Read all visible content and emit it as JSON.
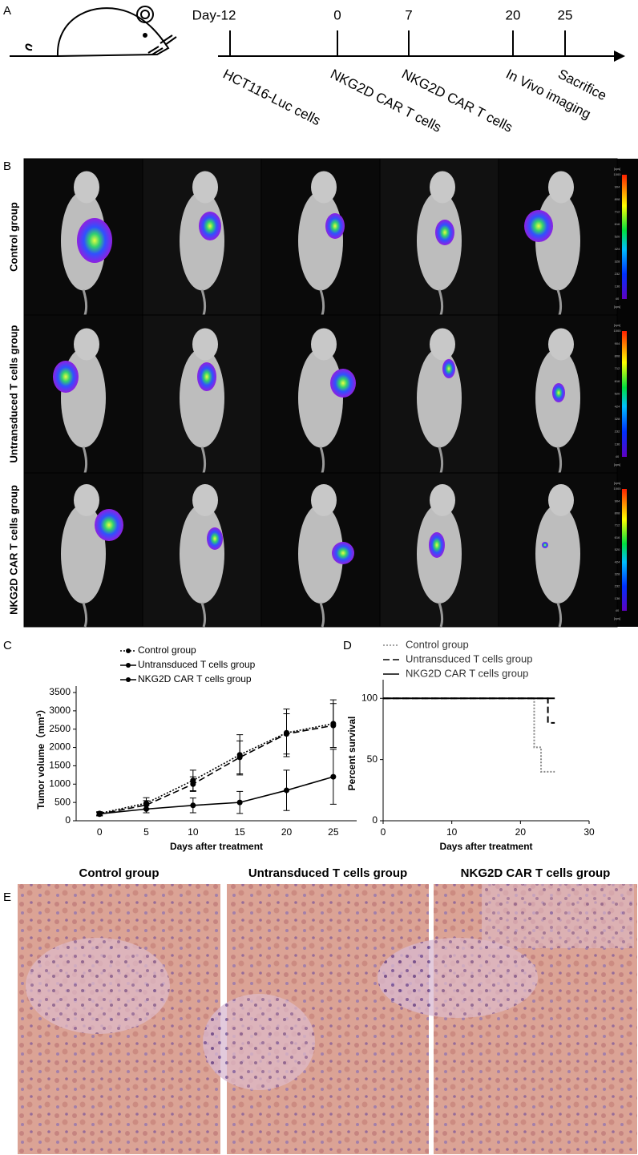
{
  "panel_labels": [
    "A",
    "B",
    "C",
    "D",
    "E"
  ],
  "timeline": {
    "ticks": [
      "Day-12",
      "0",
      "7",
      "20",
      "25"
    ],
    "events": [
      "HCT116-Luc cells",
      "NKG2D CAR T cells",
      "NKG2D CAR T cells",
      "In Vivo imaging",
      "Sacrifice"
    ]
  },
  "imaging": {
    "row_labels": [
      "Control group",
      "Untransduced T cells group",
      "NKG2D CAR T cells group"
    ],
    "colorbar_unit": "[cps]",
    "colorbar_ticks": [
      "1000",
      "904",
      "808",
      "712",
      "616",
      "520",
      "424",
      "328",
      "232",
      "136",
      "40"
    ]
  },
  "chart_data": [
    {
      "type": "line",
      "xlabel": "Days after treatment",
      "ylabel": "Tumor volume（mm³）",
      "categories": [
        "0",
        "5",
        "10",
        "15",
        "20",
        "25"
      ],
      "ylim": [
        0,
        3500
      ],
      "yticks": [
        0,
        500,
        1000,
        1500,
        2000,
        2500,
        3000,
        3500
      ],
      "legend": "top-left",
      "series": [
        {
          "name": "Control group",
          "color": "#000000",
          "line_style": "dotted",
          "values": [
            200,
            480,
            1100,
            1800,
            2400,
            2650
          ],
          "errors": [
            50,
            150,
            280,
            550,
            650,
            650
          ]
        },
        {
          "name": "Untransduced T cells group",
          "color": "#000000",
          "line_style": "dashed",
          "values": [
            180,
            430,
            1000,
            1730,
            2370,
            2600
          ],
          "errors": [
            50,
            120,
            200,
            450,
            550,
            600
          ]
        },
        {
          "name": "NKG2D CAR T cells group",
          "color": "#000000",
          "line_style": "solid",
          "values": [
            190,
            320,
            420,
            500,
            830,
            1200
          ],
          "errors": [
            40,
            100,
            200,
            300,
            550,
            750
          ]
        }
      ]
    },
    {
      "type": "line",
      "xlabel": "Days after treatment",
      "ylabel": "Percent survival",
      "xlim": [
        0,
        30
      ],
      "xticks": [
        0,
        10,
        20,
        30
      ],
      "ylim": [
        0,
        110
      ],
      "yticks": [
        0,
        50,
        100
      ],
      "legend": "top",
      "series": [
        {
          "name": "Control group",
          "color": "#888888",
          "line_style": "dotted",
          "x": [
            0,
            22,
            22,
            23,
            23,
            25
          ],
          "values": [
            100,
            100,
            60,
            60,
            40,
            40
          ]
        },
        {
          "name": "Untransduced T cells group",
          "color": "#000000",
          "line_style": "dashed",
          "x": [
            0,
            24,
            24,
            25
          ],
          "values": [
            100,
            100,
            80,
            80
          ]
        },
        {
          "name": "NKG2D CAR T cells group",
          "color": "#000000",
          "line_style": "solid",
          "x": [
            0,
            25
          ],
          "values": [
            100,
            100
          ]
        }
      ]
    }
  ],
  "histology": {
    "titles": [
      "Control group",
      "Untransduced T cells group",
      "NKG2D CAR T cells group"
    ]
  }
}
